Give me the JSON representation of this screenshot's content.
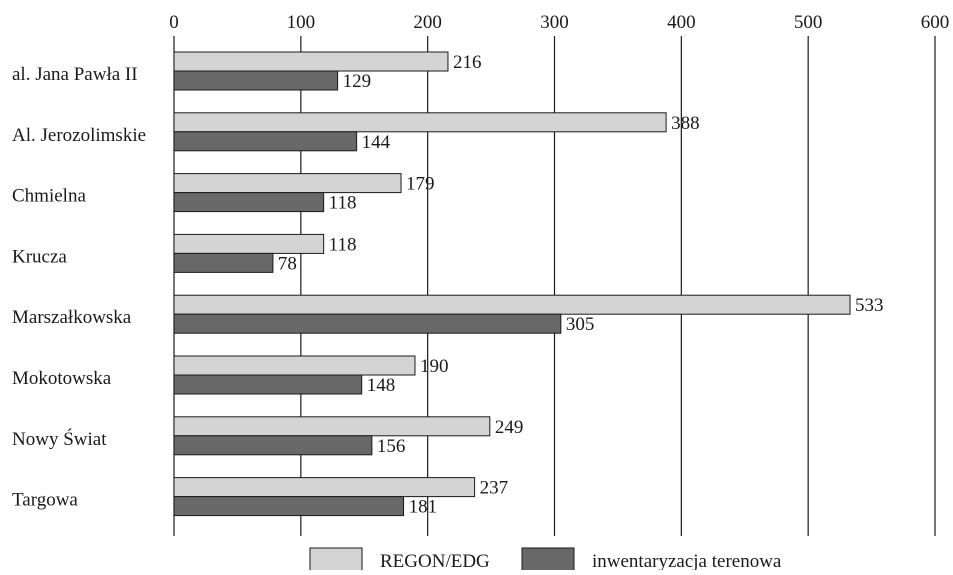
{
  "chart_data": {
    "type": "bar",
    "orientation": "horizontal",
    "categories": [
      "al. Jana Pawła II",
      "Al. Jerozolimskie",
      "Chmielna",
      "Krucza",
      "Marszałkowska",
      "Mokotowska",
      "Nowy Świat",
      "Targowa"
    ],
    "series": [
      {
        "name": "REGON/EDG",
        "values": [
          216,
          388,
          179,
          118,
          533,
          190,
          249,
          237
        ],
        "color": "#d4d4d4"
      },
      {
        "name": "inwentaryzacja terenowa",
        "values": [
          129,
          144,
          118,
          78,
          305,
          148,
          156,
          181
        ],
        "color": "#686868"
      }
    ],
    "xlim": [
      0,
      600
    ],
    "xticks": [
      0,
      100,
      200,
      300,
      400,
      500,
      600
    ],
    "x_axis_position": "top",
    "grid": true,
    "legend_position": "bottom",
    "title": "",
    "xlabel": "",
    "ylabel": ""
  }
}
